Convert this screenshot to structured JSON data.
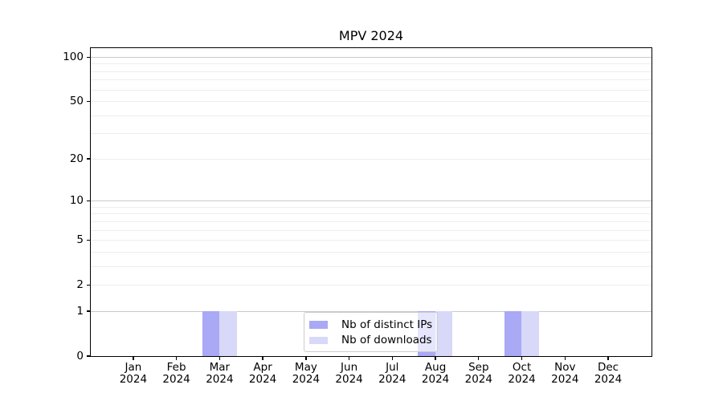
{
  "chart_data": {
    "type": "bar",
    "title": "MPV 2024",
    "categories": [
      "Jan 2024",
      "Feb 2024",
      "Mar 2024",
      "Apr 2024",
      "May 2024",
      "Jun 2024",
      "Jul 2024",
      "Aug 2024",
      "Sep 2024",
      "Oct 2024",
      "Nov 2024",
      "Dec 2024"
    ],
    "x_tick_months": [
      "Jan",
      "Feb",
      "Mar",
      "Apr",
      "May",
      "Jun",
      "Jul",
      "Aug",
      "Sep",
      "Oct",
      "Nov",
      "Dec"
    ],
    "x_tick_year": "2024",
    "series": [
      {
        "name": "Nb of distinct IPs",
        "color": "#a9a9f6",
        "values": [
          0,
          0,
          1,
          0,
          0,
          0,
          0,
          1,
          0,
          1,
          0,
          0
        ]
      },
      {
        "name": "Nb of downloads",
        "color": "#d8d8f8",
        "values": [
          0,
          0,
          1,
          0,
          0,
          0,
          0,
          1,
          0,
          1,
          0,
          0
        ]
      }
    ],
    "y_scale": "log1p",
    "ylim": [
      0,
      115
    ],
    "y_ticks": [
      0,
      1,
      2,
      5,
      10,
      20,
      50,
      100
    ],
    "y_gridlines_major": [
      1,
      10,
      100
    ],
    "y_gridlines_minor": [
      2,
      3,
      4,
      5,
      6,
      7,
      8,
      9,
      20,
      30,
      40,
      50,
      60,
      70,
      80,
      90
    ],
    "grid": true,
    "legend_position": "lower center",
    "colors": {
      "background": "#ffffff",
      "axis": "#000000",
      "gridline_major": "#c9c9c9",
      "gridline_minor": "#ededed",
      "legend_border": "#cccccc"
    }
  }
}
